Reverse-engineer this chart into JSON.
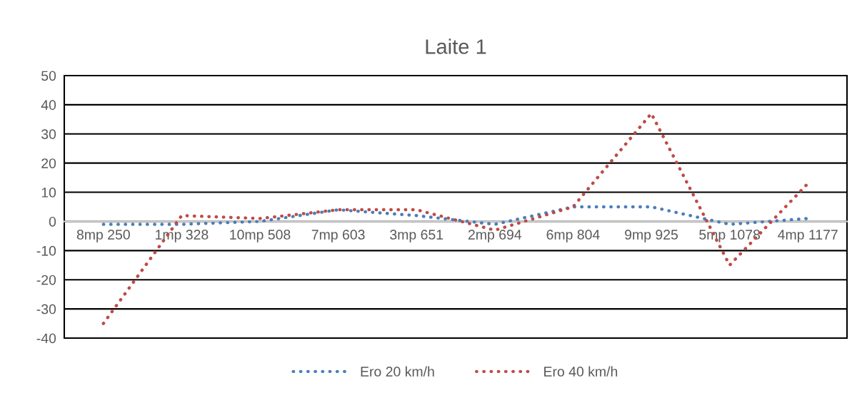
{
  "chart_data": {
    "type": "line",
    "title": "Laite 1",
    "categories": [
      "8mp 250",
      "1mp 328",
      "10mp 508",
      "7mp 603",
      "3mp 651",
      "2mp 694",
      "6mp 804",
      "9mp 925",
      "5mp 1078",
      "4mp 1177"
    ],
    "series": [
      {
        "name": "Ero 20 km/h",
        "color": "#4a7ebb",
        "values": [
          -1,
          -1,
          0,
          4,
          2,
          -1,
          5,
          5,
          -1,
          1
        ]
      },
      {
        "name": "Ero 40 km/h",
        "color": "#be4b48",
        "values": [
          -35,
          2,
          1,
          4,
          4,
          -3,
          5,
          37,
          -15,
          13
        ]
      }
    ],
    "ylim": [
      -40,
      50
    ],
    "yticks": [
      -40,
      -30,
      -20,
      -10,
      0,
      10,
      20,
      30,
      40,
      50
    ],
    "grid": "y",
    "legend": "bottom",
    "marker": "none",
    "line_style": "dotted"
  }
}
